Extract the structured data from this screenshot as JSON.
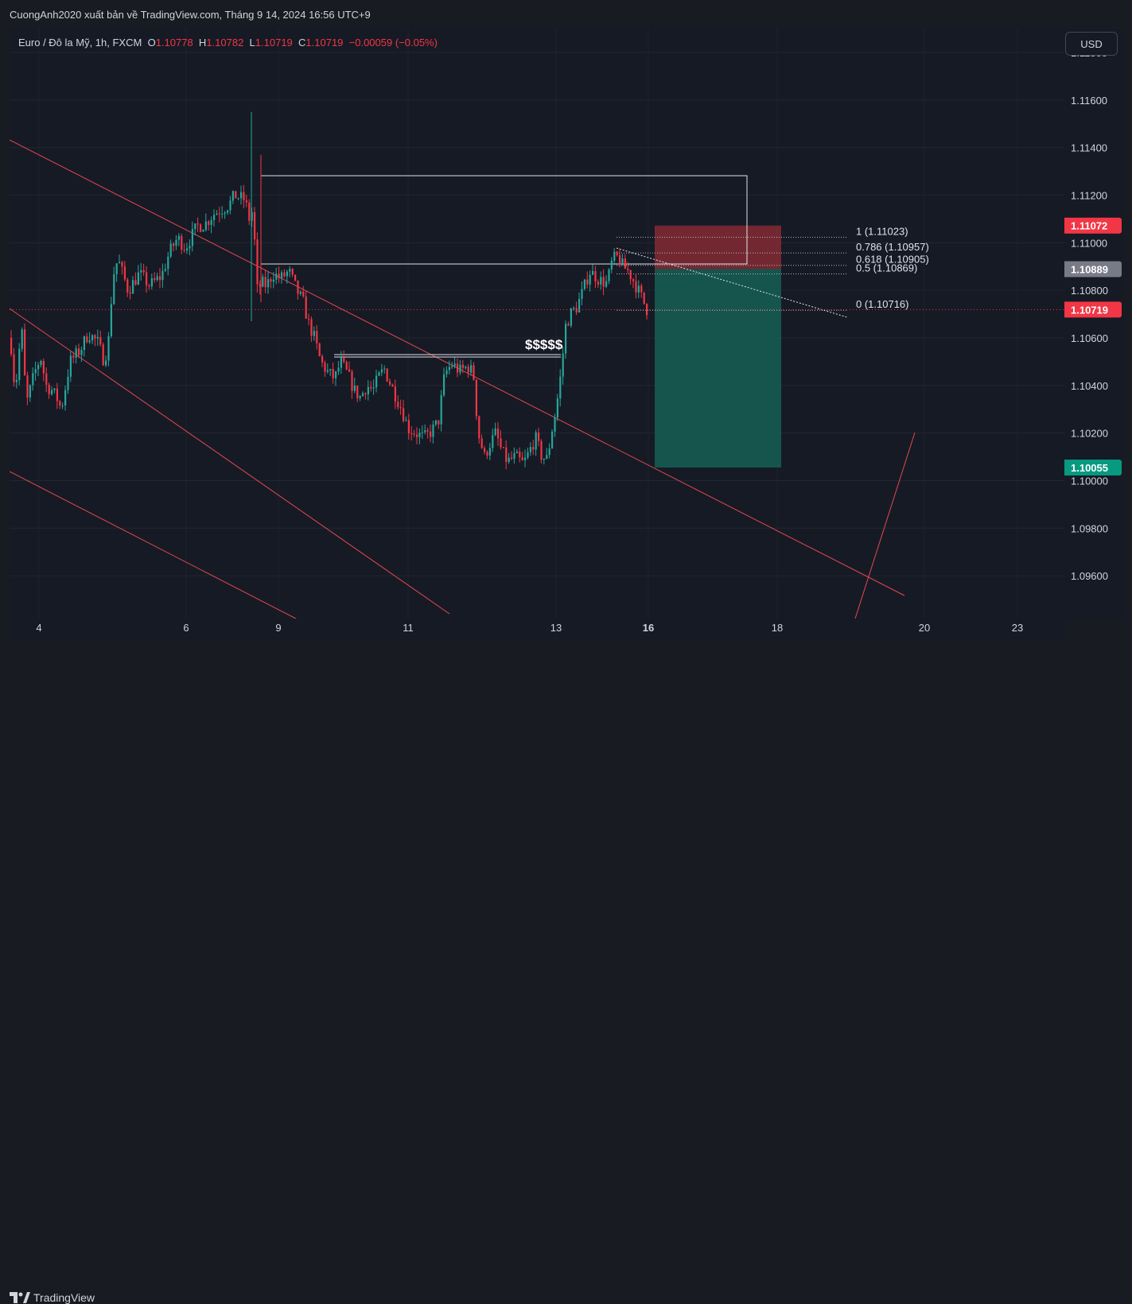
{
  "header": {
    "publish_line": "CuongAnh2020 xuất bản về TradingView.com, Tháng 9 14, 2024 16:56 UTC+9"
  },
  "legend": {
    "symbol": "Euro / Đô la Mỹ, 1h, FXCM",
    "open_label": "O",
    "open": "1.10778",
    "high_label": "H",
    "high": "1.10782",
    "low_label": "L",
    "low": "1.10719",
    "close_label": "C",
    "close": "1.10719",
    "change": "−0.00059 (−0.05%)"
  },
  "currency_button": "USD",
  "footer": {
    "brand": "TradingView"
  },
  "colors": {
    "up": "#26a69a",
    "down": "#f23645",
    "channel": "#e5484d",
    "target": "#15584f",
    "stop": "#7d2a33",
    "background": "#161a25"
  },
  "chart_data": {
    "type": "candlestick",
    "y_range": [
      1.0942,
      1.119
    ],
    "price_ticks": [
      "1.11800",
      "1.11600",
      "1.11400",
      "1.11200",
      "1.11000",
      "1.10800",
      "1.10600",
      "1.10400",
      "1.10200",
      "1.10000",
      "1.09800",
      "1.09600"
    ],
    "x_tick_labels": [
      "4",
      "6",
      "9",
      "11",
      "13",
      "16",
      "18",
      "20",
      "23"
    ],
    "price_labels": [
      {
        "value": "1.11072",
        "price": 1.11072,
        "color": "#f23645"
      },
      {
        "value": "1.10889",
        "price": 1.10889,
        "color": "#787b86"
      },
      {
        "value": "1.10719",
        "price": 1.10719,
        "color": "#f23645"
      },
      {
        "value": "1.10055",
        "price": 1.10055,
        "color": "#089981"
      }
    ],
    "fib_levels": [
      {
        "label": "1 (1.11023)",
        "price": 1.11023
      },
      {
        "label": "0.786 (1.10957)",
        "price": 1.10957
      },
      {
        "label": "0.618 (1.10905)",
        "price": 1.10905
      },
      {
        "label": "0.5 (1.10869)",
        "price": 1.10869
      },
      {
        "label": "0 (1.10716)",
        "price": 1.10716
      }
    ],
    "annotation": "$$$$$",
    "position": {
      "entry": 1.10889,
      "stop": 1.11072,
      "target": 1.10055
    },
    "path": [
      [
        0,
        1.106
      ],
      [
        6,
        1.1037
      ],
      [
        14,
        1.1065
      ],
      [
        20,
        1.1032
      ],
      [
        30,
        1.1045
      ],
      [
        38,
        1.1052
      ],
      [
        45,
        1.104
      ],
      [
        52,
        1.1038
      ],
      [
        58,
        1.1035
      ],
      [
        64,
        1.103
      ],
      [
        75,
        1.105
      ],
      [
        88,
        1.1055
      ],
      [
        98,
        1.1062
      ],
      [
        110,
        1.1058
      ],
      [
        118,
        1.105
      ],
      [
        125,
        1.1062
      ],
      [
        128,
        1.1085
      ],
      [
        135,
        1.1093
      ],
      [
        148,
        1.108
      ],
      [
        162,
        1.1087
      ],
      [
        175,
        1.1082
      ],
      [
        190,
        1.1086
      ],
      [
        200,
        1.1096
      ],
      [
        210,
        1.1102
      ],
      [
        220,
        1.1098
      ],
      [
        235,
        1.1107
      ],
      [
        245,
        1.1108
      ],
      [
        255,
        1.1112
      ],
      [
        265,
        1.1114
      ],
      [
        275,
        1.1116
      ],
      [
        282,
        1.112
      ],
      [
        288,
        1.1119
      ],
      [
        295,
        1.1118
      ],
      [
        300,
        1.111
      ],
      [
        305,
        1.1114
      ],
      [
        310,
        1.108
      ],
      [
        316,
        1.1083
      ],
      [
        322,
        1.1082
      ],
      [
        330,
        1.1087
      ],
      [
        340,
        1.1085
      ],
      [
        350,
        1.1088
      ],
      [
        360,
        1.108
      ],
      [
        368,
        1.1075
      ],
      [
        375,
        1.1066
      ],
      [
        382,
        1.106
      ],
      [
        390,
        1.105
      ],
      [
        400,
        1.1045
      ],
      [
        408,
        1.1043
      ],
      [
        415,
        1.105
      ],
      [
        425,
        1.1044
      ],
      [
        432,
        1.1038
      ],
      [
        440,
        1.1035
      ],
      [
        448,
        1.104
      ],
      [
        456,
        1.1038
      ],
      [
        462,
        1.1043
      ],
      [
        470,
        1.1047
      ],
      [
        476,
        1.1042
      ],
      [
        484,
        1.1036
      ],
      [
        492,
        1.103
      ],
      [
        500,
        1.1022
      ],
      [
        510,
        1.102
      ],
      [
        520,
        1.1018
      ],
      [
        530,
        1.1021
      ],
      [
        538,
        1.1025
      ],
      [
        546,
        1.1045
      ],
      [
        555,
        1.1049
      ],
      [
        565,
        1.1046
      ],
      [
        575,
        1.1048
      ],
      [
        582,
        1.1045
      ],
      [
        588,
        1.102
      ],
      [
        596,
        1.101
      ],
      [
        602,
        1.1015
      ],
      [
        610,
        1.102
      ],
      [
        618,
        1.1012
      ],
      [
        625,
        1.1008
      ],
      [
        635,
        1.101
      ],
      [
        645,
        1.1007
      ],
      [
        652,
        1.1012
      ],
      [
        660,
        1.1018
      ],
      [
        668,
        1.101
      ],
      [
        675,
        1.1009
      ],
      [
        680,
        1.102
      ],
      [
        686,
        1.103
      ],
      [
        692,
        1.1045
      ],
      [
        698,
        1.1065
      ],
      [
        704,
        1.107
      ],
      [
        712,
        1.1073
      ],
      [
        720,
        1.108
      ],
      [
        728,
        1.1088
      ],
      [
        735,
        1.1086
      ],
      [
        742,
        1.1084
      ],
      [
        750,
        1.1083
      ],
      [
        757,
        1.1093
      ],
      [
        764,
        1.1094
      ],
      [
        770,
        1.109
      ],
      [
        777,
        1.1088
      ],
      [
        785,
        1.1083
      ],
      [
        792,
        1.1078
      ],
      [
        800,
        1.1072
      ]
    ]
  }
}
